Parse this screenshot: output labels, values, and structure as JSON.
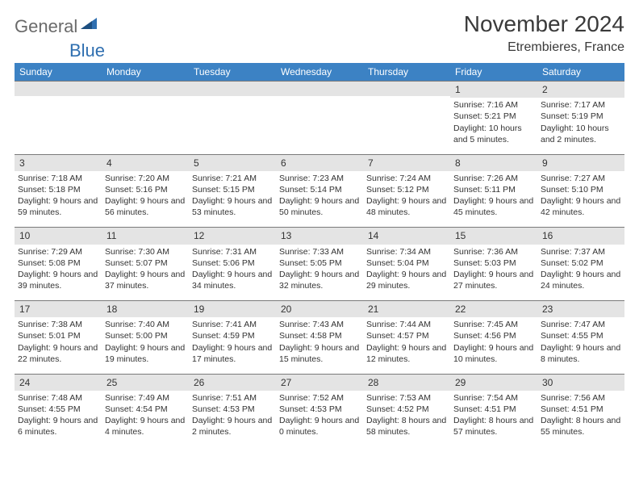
{
  "logo": {
    "text1": "General",
    "text2": "Blue"
  },
  "title": "November 2024",
  "location": "Etrembieres, France",
  "colors": {
    "header_bg": "#3c82c4",
    "header_text": "#ffffff",
    "daynum_bg": "#e4e4e4",
    "border": "#7a7a7a",
    "logo_gray": "#6a6a6a",
    "logo_blue": "#2f6fb0"
  },
  "weekdays": [
    "Sunday",
    "Monday",
    "Tuesday",
    "Wednesday",
    "Thursday",
    "Friday",
    "Saturday"
  ],
  "weeks": [
    [
      null,
      null,
      null,
      null,
      null,
      {
        "n": "1",
        "sr": "7:16 AM",
        "ss": "5:21 PM",
        "dl": "10 hours and 5 minutes."
      },
      {
        "n": "2",
        "sr": "7:17 AM",
        "ss": "5:19 PM",
        "dl": "10 hours and 2 minutes."
      }
    ],
    [
      {
        "n": "3",
        "sr": "7:18 AM",
        "ss": "5:18 PM",
        "dl": "9 hours and 59 minutes."
      },
      {
        "n": "4",
        "sr": "7:20 AM",
        "ss": "5:16 PM",
        "dl": "9 hours and 56 minutes."
      },
      {
        "n": "5",
        "sr": "7:21 AM",
        "ss": "5:15 PM",
        "dl": "9 hours and 53 minutes."
      },
      {
        "n": "6",
        "sr": "7:23 AM",
        "ss": "5:14 PM",
        "dl": "9 hours and 50 minutes."
      },
      {
        "n": "7",
        "sr": "7:24 AM",
        "ss": "5:12 PM",
        "dl": "9 hours and 48 minutes."
      },
      {
        "n": "8",
        "sr": "7:26 AM",
        "ss": "5:11 PM",
        "dl": "9 hours and 45 minutes."
      },
      {
        "n": "9",
        "sr": "7:27 AM",
        "ss": "5:10 PM",
        "dl": "9 hours and 42 minutes."
      }
    ],
    [
      {
        "n": "10",
        "sr": "7:29 AM",
        "ss": "5:08 PM",
        "dl": "9 hours and 39 minutes."
      },
      {
        "n": "11",
        "sr": "7:30 AM",
        "ss": "5:07 PM",
        "dl": "9 hours and 37 minutes."
      },
      {
        "n": "12",
        "sr": "7:31 AM",
        "ss": "5:06 PM",
        "dl": "9 hours and 34 minutes."
      },
      {
        "n": "13",
        "sr": "7:33 AM",
        "ss": "5:05 PM",
        "dl": "9 hours and 32 minutes."
      },
      {
        "n": "14",
        "sr": "7:34 AM",
        "ss": "5:04 PM",
        "dl": "9 hours and 29 minutes."
      },
      {
        "n": "15",
        "sr": "7:36 AM",
        "ss": "5:03 PM",
        "dl": "9 hours and 27 minutes."
      },
      {
        "n": "16",
        "sr": "7:37 AM",
        "ss": "5:02 PM",
        "dl": "9 hours and 24 minutes."
      }
    ],
    [
      {
        "n": "17",
        "sr": "7:38 AM",
        "ss": "5:01 PM",
        "dl": "9 hours and 22 minutes."
      },
      {
        "n": "18",
        "sr": "7:40 AM",
        "ss": "5:00 PM",
        "dl": "9 hours and 19 minutes."
      },
      {
        "n": "19",
        "sr": "7:41 AM",
        "ss": "4:59 PM",
        "dl": "9 hours and 17 minutes."
      },
      {
        "n": "20",
        "sr": "7:43 AM",
        "ss": "4:58 PM",
        "dl": "9 hours and 15 minutes."
      },
      {
        "n": "21",
        "sr": "7:44 AM",
        "ss": "4:57 PM",
        "dl": "9 hours and 12 minutes."
      },
      {
        "n": "22",
        "sr": "7:45 AM",
        "ss": "4:56 PM",
        "dl": "9 hours and 10 minutes."
      },
      {
        "n": "23",
        "sr": "7:47 AM",
        "ss": "4:55 PM",
        "dl": "9 hours and 8 minutes."
      }
    ],
    [
      {
        "n": "24",
        "sr": "7:48 AM",
        "ss": "4:55 PM",
        "dl": "9 hours and 6 minutes."
      },
      {
        "n": "25",
        "sr": "7:49 AM",
        "ss": "4:54 PM",
        "dl": "9 hours and 4 minutes."
      },
      {
        "n": "26",
        "sr": "7:51 AM",
        "ss": "4:53 PM",
        "dl": "9 hours and 2 minutes."
      },
      {
        "n": "27",
        "sr": "7:52 AM",
        "ss": "4:53 PM",
        "dl": "9 hours and 0 minutes."
      },
      {
        "n": "28",
        "sr": "7:53 AM",
        "ss": "4:52 PM",
        "dl": "8 hours and 58 minutes."
      },
      {
        "n": "29",
        "sr": "7:54 AM",
        "ss": "4:51 PM",
        "dl": "8 hours and 57 minutes."
      },
      {
        "n": "30",
        "sr": "7:56 AM",
        "ss": "4:51 PM",
        "dl": "8 hours and 55 minutes."
      }
    ]
  ],
  "labels": {
    "sunrise": "Sunrise: ",
    "sunset": "Sunset: ",
    "daylight": "Daylight: "
  }
}
